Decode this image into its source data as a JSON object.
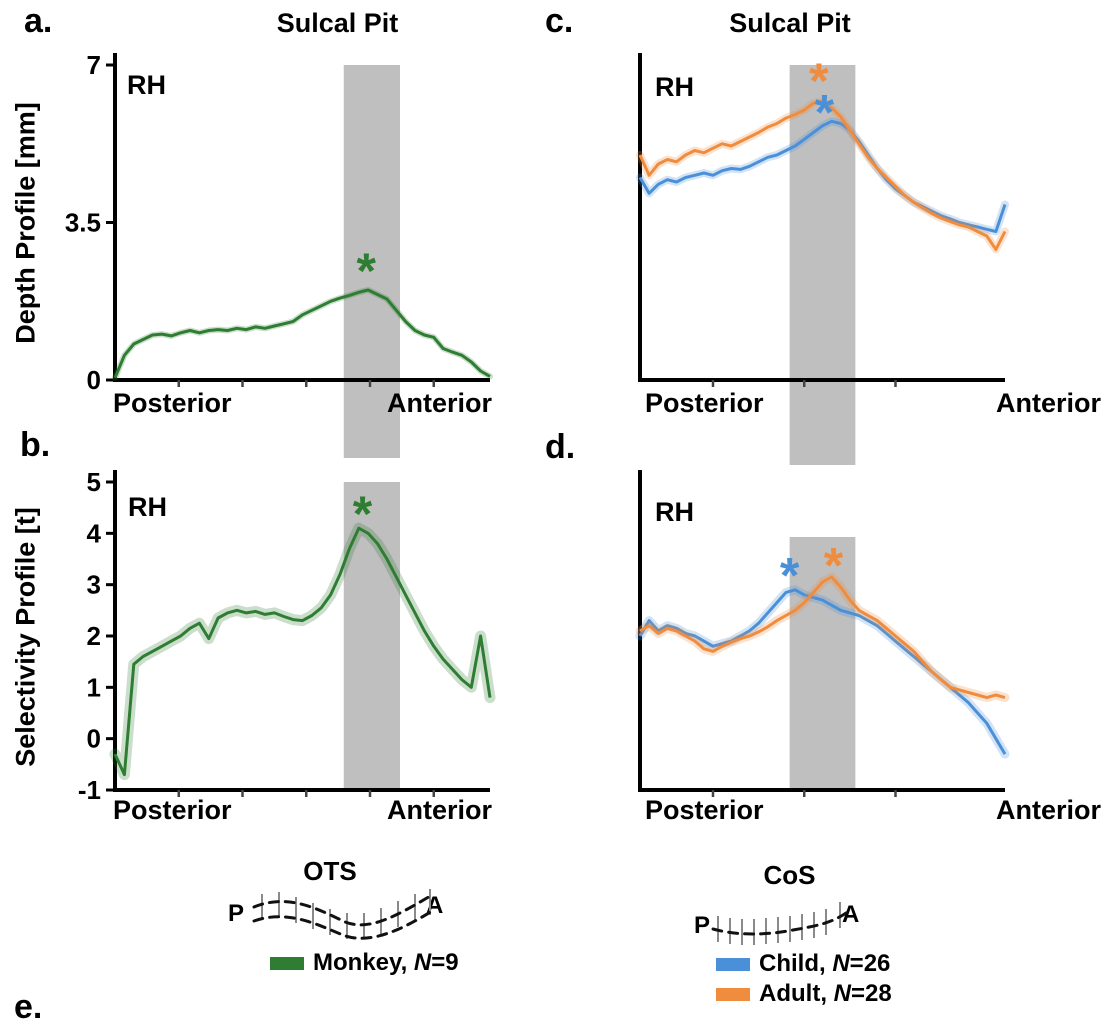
{
  "figure": {
    "extra_panel_label": "e."
  },
  "colors": {
    "green": "#2e7d32",
    "blue": "#4a90d9",
    "orange": "#f08c3e",
    "band_gray": "#bfbfbf",
    "axis_black": "#000000"
  },
  "chart_data": [
    {
      "id": "a",
      "type": "line",
      "panel_label": "a.",
      "title": "Sulcal Pit",
      "hemisphere_label": "RH",
      "ylabel": "Depth Profile [mm]",
      "x_axis_left_label": "Posterior",
      "x_axis_right_label": "Anterior",
      "ylim": [
        0,
        7
      ],
      "yticks": [
        0,
        3.5,
        7
      ],
      "ytick_labels": [
        "0",
        "3.5",
        "7"
      ],
      "xticks": [
        0.17,
        0.34,
        0.51,
        0.68,
        0.85
      ],
      "band_x": [
        0.61,
        0.76
      ],
      "band_extends_below_axis": true,
      "ribbon_width": 6,
      "series": [
        {
          "name": "Monkey",
          "color_key": "green",
          "y": [
            0.05,
            0.55,
            0.8,
            0.9,
            1.0,
            1.02,
            0.98,
            1.05,
            1.1,
            1.05,
            1.1,
            1.12,
            1.1,
            1.15,
            1.12,
            1.18,
            1.15,
            1.2,
            1.25,
            1.3,
            1.45,
            1.55,
            1.65,
            1.75,
            1.82,
            1.88,
            1.95,
            2.0,
            1.9,
            1.8,
            1.55,
            1.3,
            1.1,
            1.0,
            0.95,
            0.7,
            0.62,
            0.55,
            0.4,
            0.2,
            0.08
          ]
        }
      ],
      "markers": [
        {
          "symbol": "*",
          "color_key": "green",
          "x": 0.67,
          "y": 2.62
        }
      ]
    },
    {
      "id": "b",
      "type": "line",
      "panel_label": "b.",
      "hemisphere_label": "RH",
      "ylabel": "Selectivity Profile [t]",
      "x_axis_left_label": "Posterior",
      "x_axis_right_label": "Anterior",
      "ylim": [
        -1,
        5
      ],
      "yticks": [
        -1,
        0,
        1,
        2,
        3,
        4,
        5
      ],
      "ytick_labels": [
        "-1",
        "0",
        "1",
        "2",
        "3",
        "4",
        "5"
      ],
      "xticks": [
        0.17,
        0.34,
        0.51,
        0.68,
        0.85
      ],
      "band_x": [
        0.61,
        0.76
      ],
      "band_extends_below_axis": false,
      "ribbon_width": 11,
      "series": [
        {
          "name": "Monkey",
          "color_key": "green",
          "y": [
            -0.3,
            -0.7,
            1.45,
            1.6,
            1.7,
            1.8,
            1.9,
            2.0,
            2.15,
            2.25,
            1.95,
            2.35,
            2.45,
            2.5,
            2.45,
            2.48,
            2.42,
            2.45,
            2.38,
            2.32,
            2.3,
            2.4,
            2.55,
            2.8,
            3.2,
            3.7,
            4.1,
            4.0,
            3.8,
            3.5,
            3.15,
            2.8,
            2.45,
            2.1,
            1.8,
            1.55,
            1.35,
            1.15,
            1.0,
            2.0,
            0.8
          ]
        }
      ],
      "markers": [
        {
          "symbol": "*",
          "color_key": "green",
          "x": 0.66,
          "y": 4.55
        }
      ]
    },
    {
      "id": "c",
      "type": "line",
      "panel_label": "c.",
      "title": "Sulcal Pit",
      "hemisphere_label": "RH",
      "x_axis_left_label": "Posterior",
      "x_axis_right_label": "Anterior",
      "ylim": [
        0,
        7
      ],
      "yticks": [],
      "ytick_labels": [],
      "xticks": [
        0.2,
        0.45,
        0.7
      ],
      "band_x": [
        0.41,
        0.59
      ],
      "band_extends_below_axis": true,
      "ribbon_width": 8,
      "series": [
        {
          "name": "Child",
          "color_key": "blue",
          "y": [
            4.5,
            4.15,
            4.35,
            4.45,
            4.4,
            4.5,
            4.55,
            4.6,
            4.55,
            4.65,
            4.7,
            4.68,
            4.75,
            4.85,
            4.95,
            5.0,
            5.1,
            5.2,
            5.35,
            5.5,
            5.65,
            5.75,
            5.7,
            5.55,
            5.3,
            5.0,
            4.7,
            4.45,
            4.25,
            4.1,
            3.95,
            3.85,
            3.75,
            3.65,
            3.58,
            3.5,
            3.45,
            3.4,
            3.35,
            3.3,
            3.9
          ]
        },
        {
          "name": "Adult",
          "color_key": "orange",
          "y": [
            5.0,
            4.55,
            4.8,
            4.9,
            4.85,
            5.0,
            5.1,
            5.05,
            5.15,
            5.25,
            5.2,
            5.3,
            5.4,
            5.5,
            5.62,
            5.7,
            5.82,
            5.9,
            6.0,
            6.15,
            6.2,
            6.05,
            5.85,
            5.55,
            5.25,
            4.95,
            4.7,
            4.5,
            4.3,
            4.1,
            3.95,
            3.82,
            3.7,
            3.6,
            3.52,
            3.45,
            3.4,
            3.3,
            3.2,
            2.9,
            3.3
          ]
        }
      ],
      "markers": [
        {
          "symbol": "*",
          "color_key": "orange",
          "x": 0.49,
          "y": 6.85
        },
        {
          "symbol": "*",
          "color_key": "blue",
          "x": 0.505,
          "y": 6.15
        }
      ]
    },
    {
      "id": "d",
      "type": "line",
      "panel_label": "d.",
      "hemisphere_label": "RH",
      "x_axis_left_label": "Posterior",
      "x_axis_right_label": "Anterior",
      "ylim": [
        -1,
        5
      ],
      "yticks": [],
      "ytick_labels": [],
      "xticks": [
        0.2,
        0.45,
        0.7
      ],
      "band_x": [
        0.41,
        0.59
      ],
      "band_extends_below_axis": false,
      "band_top_inset": 55,
      "ribbon_width": 9,
      "series": [
        {
          "name": "Child",
          "color_key": "blue",
          "y": [
            2.0,
            2.3,
            2.1,
            2.2,
            2.15,
            2.05,
            2.0,
            1.9,
            1.8,
            1.85,
            1.9,
            2.0,
            2.1,
            2.25,
            2.45,
            2.65,
            2.85,
            2.9,
            2.8,
            2.75,
            2.7,
            2.6,
            2.5,
            2.45,
            2.4,
            2.3,
            2.2,
            2.05,
            1.9,
            1.75,
            1.6,
            1.45,
            1.3,
            1.15,
            1.0,
            0.85,
            0.7,
            0.5,
            0.3,
            0.0,
            -0.3
          ]
        },
        {
          "name": "Adult",
          "color_key": "orange",
          "y": [
            2.1,
            2.2,
            2.05,
            2.15,
            2.1,
            2.0,
            1.9,
            1.75,
            1.7,
            1.8,
            1.88,
            1.95,
            2.0,
            2.08,
            2.18,
            2.3,
            2.4,
            2.5,
            2.65,
            2.85,
            3.05,
            3.15,
            2.95,
            2.7,
            2.5,
            2.4,
            2.3,
            2.15,
            2.0,
            1.85,
            1.7,
            1.5,
            1.3,
            1.15,
            1.0,
            0.95,
            0.9,
            0.85,
            0.8,
            0.85,
            0.8
          ]
        }
      ],
      "markers": [
        {
          "symbol": "*",
          "color_key": "blue",
          "x": 0.41,
          "y": 3.35
        },
        {
          "symbol": "*",
          "color_key": "orange",
          "x": 0.53,
          "y": 3.55
        }
      ]
    }
  ],
  "schematics": {
    "ots": {
      "label": "OTS",
      "posterior_abbrev": "P",
      "anterior_abbrev": "A"
    },
    "cos": {
      "label": "CoS",
      "posterior_abbrev": "P",
      "anterior_abbrev": "A"
    }
  },
  "legend": {
    "monkey": {
      "pre": "Monkey, ",
      "n": "N",
      "post": "=9",
      "color_key": "green"
    },
    "child": {
      "pre": "Child, ",
      "n": "N",
      "post": "=26",
      "color_key": "blue"
    },
    "adult": {
      "pre": "Adult, ",
      "n": "N",
      "post": "=28",
      "color_key": "orange"
    }
  }
}
